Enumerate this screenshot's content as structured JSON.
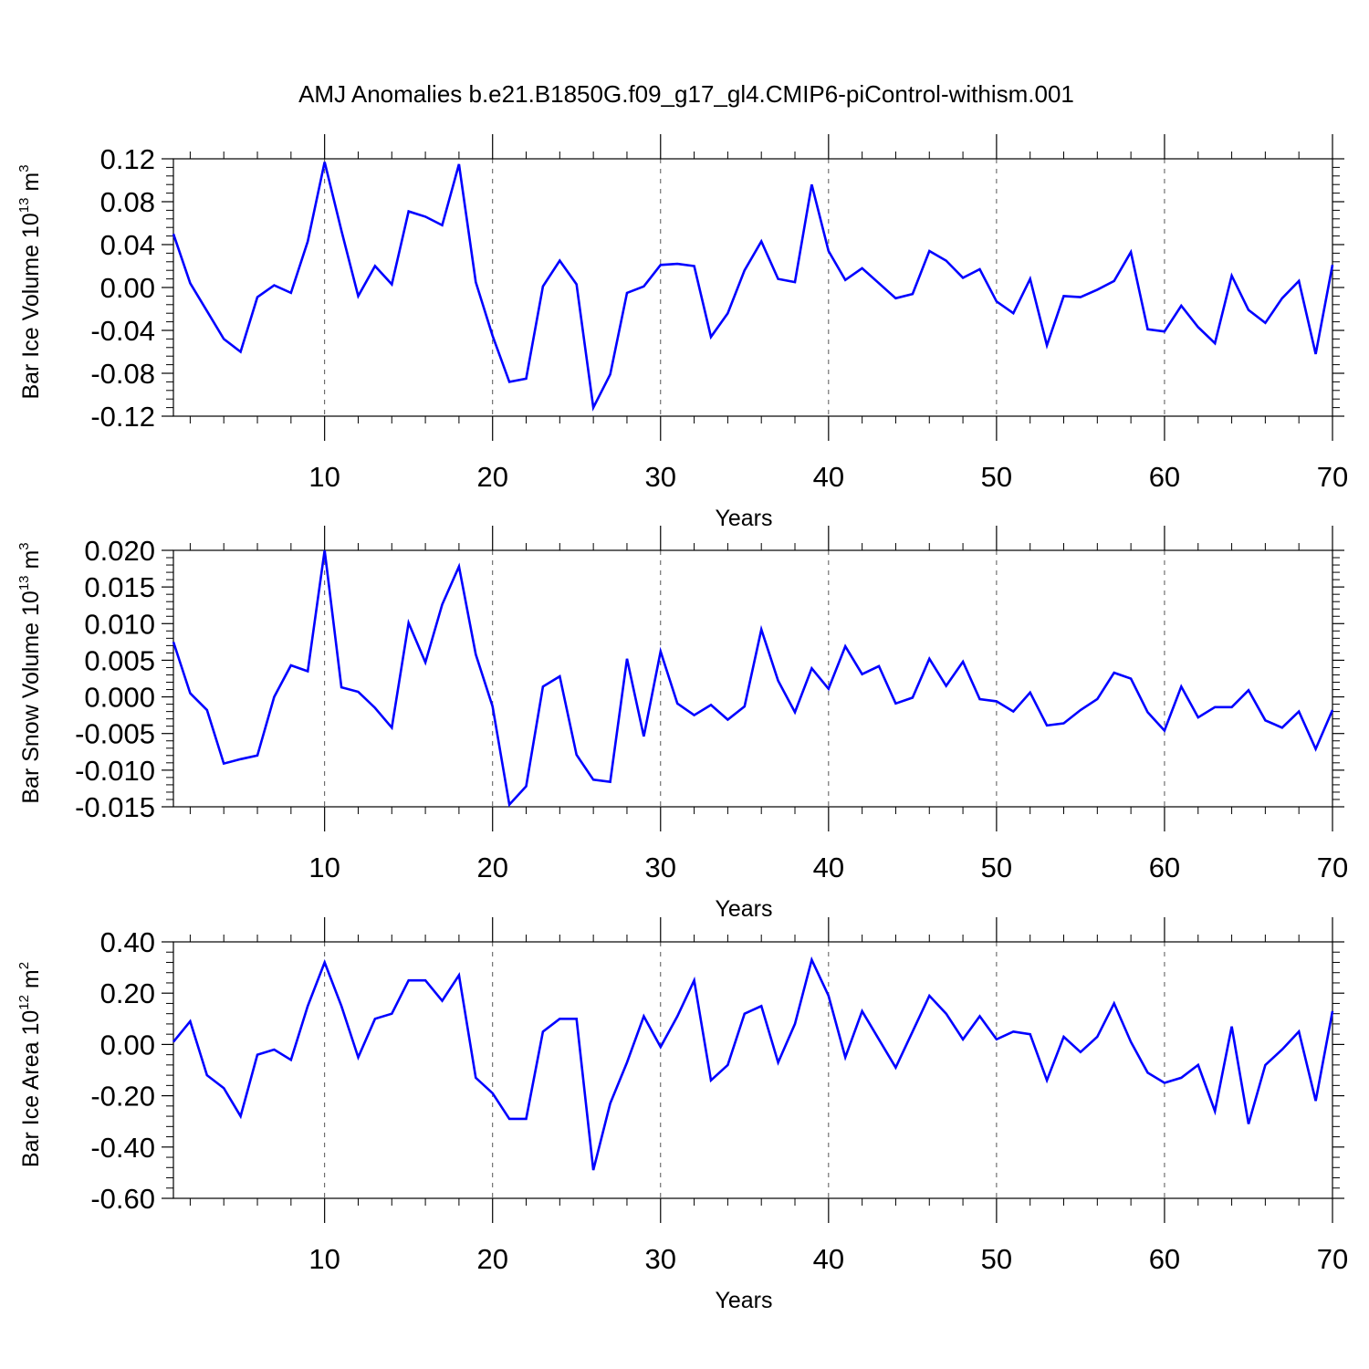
{
  "title": "AMJ Anomalies b.e21.B1850G.f09_g17_gl4.CMIP6-piControl-withism.001",
  "colors": {
    "line": "#0000ff",
    "axis": "#000000",
    "grid": "#555555"
  },
  "chart_data": [
    {
      "type": "line",
      "xlabel": "Years",
      "ylabel": {
        "text": "Bar Ice Volume 10",
        "exp": "13",
        "unit": " m",
        "unit_exp": "3"
      },
      "xlim": [
        1,
        70
      ],
      "ylim": [
        -0.12,
        0.12
      ],
      "xticks": [
        10,
        20,
        30,
        40,
        50,
        60,
        70
      ],
      "xtick_labels": [
        "10",
        "20",
        "30",
        "40",
        "50",
        "60",
        "70"
      ],
      "yticks": [
        -0.12,
        -0.08,
        -0.04,
        0.0,
        0.04,
        0.08,
        0.12
      ],
      "ytick_labels": [
        "-0.12",
        "-0.08",
        "-0.04",
        "0.00",
        "0.04",
        "0.08",
        "0.12"
      ],
      "grid": "vertical dashed at major x ticks",
      "x": [
        1,
        2,
        3,
        4,
        5,
        6,
        7,
        8,
        9,
        10,
        11,
        12,
        13,
        14,
        15,
        16,
        17,
        18,
        19,
        20,
        21,
        22,
        23,
        24,
        25,
        26,
        27,
        28,
        29,
        30,
        31,
        32,
        33,
        34,
        35,
        36,
        37,
        38,
        39,
        40,
        41,
        42,
        43,
        44,
        45,
        46,
        47,
        48,
        49,
        50,
        51,
        52,
        53,
        54,
        55,
        56,
        57,
        58,
        59,
        60,
        61,
        62,
        63,
        64,
        65,
        66,
        67,
        68,
        69,
        70
      ],
      "values": [
        0.05,
        0.004,
        -0.022,
        -0.048,
        -0.06,
        -0.009,
        0.002,
        -0.005,
        0.043,
        0.117,
        0.053,
        -0.008,
        0.02,
        0.003,
        0.071,
        0.066,
        0.058,
        0.115,
        0.005,
        -0.045,
        -0.088,
        -0.085,
        0.001,
        0.025,
        0.003,
        -0.112,
        -0.081,
        -0.005,
        0.001,
        0.021,
        0.022,
        0.02,
        -0.046,
        -0.024,
        0.016,
        0.043,
        0.008,
        0.005,
        0.096,
        0.034,
        0.007,
        0.018,
        0.004,
        -0.01,
        -0.006,
        0.034,
        0.025,
        0.009,
        0.017,
        -0.013,
        -0.024,
        0.008,
        -0.054,
        -0.008,
        -0.009,
        -0.002,
        0.006,
        0.033,
        -0.039,
        -0.041,
        -0.017,
        -0.037,
        -0.052,
        0.011,
        -0.021,
        -0.033,
        -0.01,
        0.006,
        -0.062,
        0.021
      ]
    },
    {
      "type": "line",
      "xlabel": "Years",
      "ylabel": {
        "text": "Bar Snow Volume 10",
        "exp": "13",
        "unit": " m",
        "unit_exp": "3"
      },
      "xlim": [
        1,
        70
      ],
      "ylim": [
        -0.015,
        0.02
      ],
      "xticks": [
        10,
        20,
        30,
        40,
        50,
        60,
        70
      ],
      "xtick_labels": [
        "10",
        "20",
        "30",
        "40",
        "50",
        "60",
        "70"
      ],
      "yticks": [
        -0.015,
        -0.01,
        -0.005,
        0.0,
        0.005,
        0.01,
        0.015,
        0.02
      ],
      "ytick_labels": [
        "-0.015",
        "-0.010",
        "-0.005",
        "0.000",
        "0.005",
        "0.010",
        "0.015",
        "0.020"
      ],
      "grid": "vertical dashed at major x ticks",
      "x": [
        1,
        2,
        3,
        4,
        5,
        6,
        7,
        8,
        9,
        10,
        11,
        12,
        13,
        14,
        15,
        16,
        17,
        18,
        19,
        20,
        21,
        22,
        23,
        24,
        25,
        26,
        27,
        28,
        29,
        30,
        31,
        32,
        33,
        34,
        35,
        36,
        37,
        38,
        39,
        40,
        41,
        42,
        43,
        44,
        45,
        46,
        47,
        48,
        49,
        50,
        51,
        52,
        53,
        54,
        55,
        56,
        57,
        58,
        59,
        60,
        61,
        62,
        63,
        64,
        65,
        66,
        67,
        68,
        69,
        70
      ],
      "values": [
        0.0075,
        0.0005,
        -0.0018,
        -0.0091,
        -0.0085,
        -0.008,
        0.0,
        0.0043,
        0.0035,
        0.02,
        0.0013,
        0.0007,
        -0.0015,
        -0.0042,
        0.0101,
        0.0047,
        0.0126,
        0.0178,
        0.0058,
        -0.0013,
        -0.0147,
        -0.0122,
        0.0014,
        0.0028,
        -0.0079,
        -0.0113,
        -0.0116,
        0.0052,
        -0.0054,
        0.0062,
        -0.0009,
        -0.0025,
        -0.0011,
        -0.0031,
        -0.0013,
        0.0092,
        0.0022,
        -0.0021,
        0.0039,
        0.0011,
        0.0069,
        0.0031,
        0.0042,
        -0.0009,
        -0.0001,
        0.0052,
        0.0015,
        0.0048,
        -0.0003,
        -0.0006,
        -0.002,
        0.0006,
        -0.0039,
        -0.0036,
        -0.0018,
        -0.0003,
        0.0033,
        0.0025,
        -0.0021,
        -0.0046,
        0.0014,
        -0.0028,
        -0.0014,
        -0.0014,
        0.0009,
        -0.0032,
        -0.0042,
        -0.002,
        -0.0071,
        -0.0018
      ]
    },
    {
      "type": "line",
      "xlabel": "Years",
      "ylabel": {
        "text": "Bar Ice Area 10",
        "exp": "12",
        "unit": " m",
        "unit_exp": "2"
      },
      "xlim": [
        1,
        70
      ],
      "ylim": [
        -0.6,
        0.4
      ],
      "xticks": [
        10,
        20,
        30,
        40,
        50,
        60,
        70
      ],
      "xtick_labels": [
        "10",
        "20",
        "30",
        "40",
        "50",
        "60",
        "70"
      ],
      "yticks": [
        -0.6,
        -0.4,
        -0.2,
        0.0,
        0.2,
        0.4
      ],
      "ytick_labels": [
        "-0.60",
        "-0.40",
        "-0.20",
        "0.00",
        "0.20",
        "0.40"
      ],
      "grid": "vertical dashed at major x ticks",
      "x": [
        1,
        2,
        3,
        4,
        5,
        6,
        7,
        8,
        9,
        10,
        11,
        12,
        13,
        14,
        15,
        16,
        17,
        18,
        19,
        20,
        21,
        22,
        23,
        24,
        25,
        26,
        27,
        28,
        29,
        30,
        31,
        32,
        33,
        34,
        35,
        36,
        37,
        38,
        39,
        40,
        41,
        42,
        43,
        44,
        45,
        46,
        47,
        48,
        49,
        50,
        51,
        52,
        53,
        54,
        55,
        56,
        57,
        58,
        59,
        60,
        61,
        62,
        63,
        64,
        65,
        66,
        67,
        68,
        69,
        70
      ],
      "values": [
        0.01,
        0.09,
        -0.12,
        -0.17,
        -0.28,
        -0.04,
        -0.02,
        -0.06,
        0.15,
        0.32,
        0.15,
        -0.05,
        0.1,
        0.12,
        0.25,
        0.25,
        0.17,
        0.27,
        -0.13,
        -0.19,
        -0.29,
        -0.29,
        0.05,
        0.1,
        0.1,
        -0.49,
        -0.23,
        -0.07,
        0.11,
        -0.01,
        0.11,
        0.25,
        -0.14,
        -0.08,
        0.12,
        0.15,
        -0.07,
        0.08,
        0.33,
        0.19,
        -0.05,
        0.13,
        0.02,
        -0.09,
        0.05,
        0.19,
        0.12,
        0.02,
        0.11,
        0.02,
        0.05,
        0.04,
        -0.14,
        0.03,
        -0.03,
        0.03,
        0.16,
        0.01,
        -0.11,
        -0.15,
        -0.13,
        -0.08,
        -0.26,
        0.07,
        -0.31,
        -0.08,
        -0.02,
        0.05,
        -0.22,
        0.13
      ]
    }
  ]
}
